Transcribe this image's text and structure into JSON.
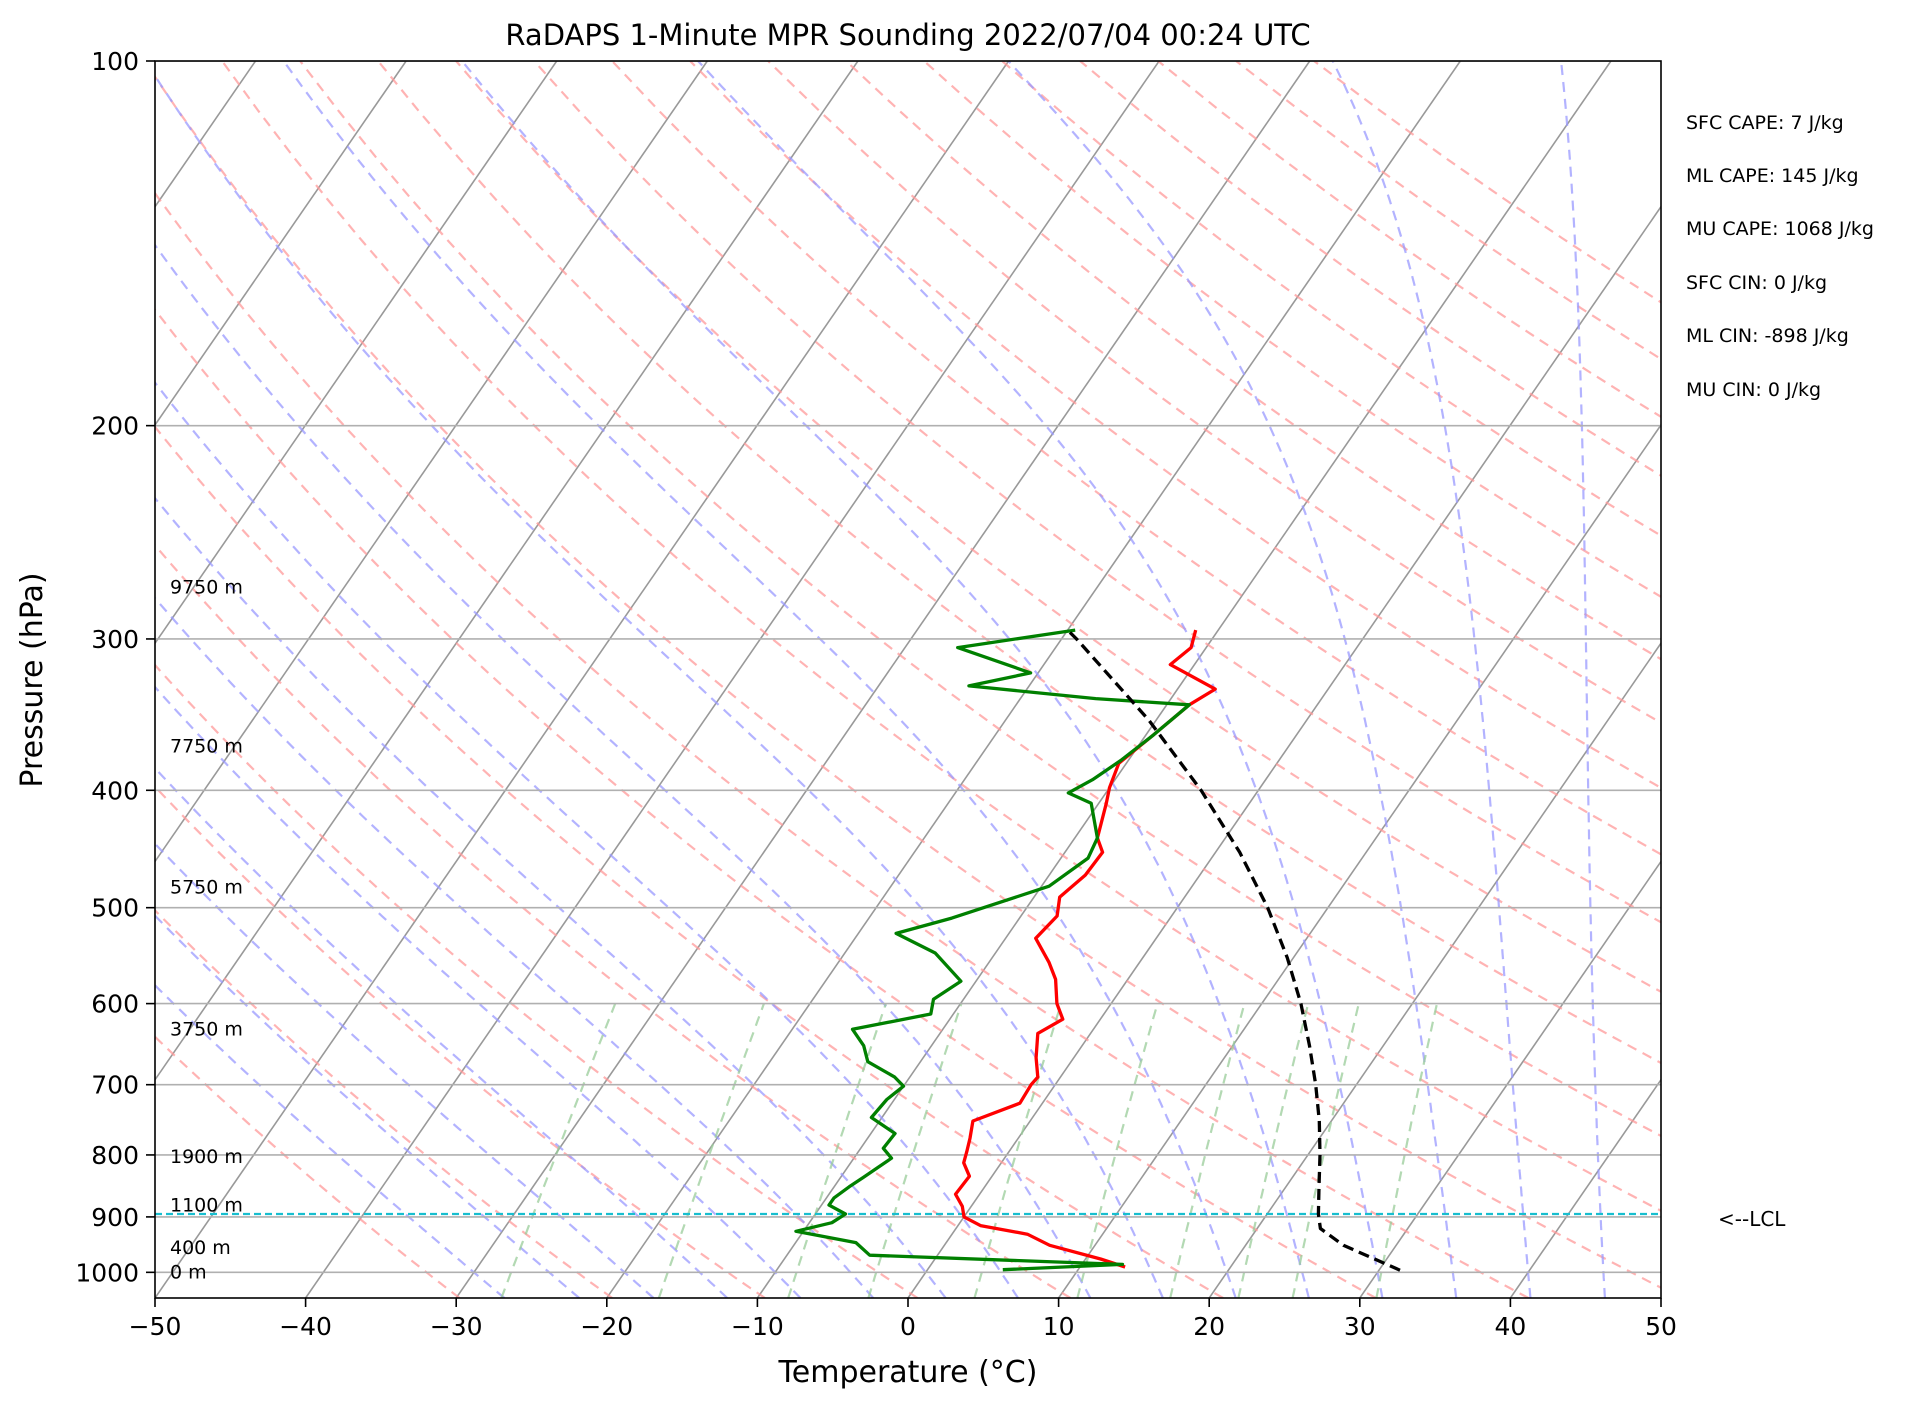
{
  "chart_data": {
    "type": "line",
    "subtype": "skew-t log-p sounding",
    "title": "RaDAPS 1-Minute MPR Sounding 2022/07/04 00:24 UTC",
    "xlabel": "Temperature (°C)",
    "ylabel": "Pressure (hPa)",
    "xlim": [
      -50,
      50
    ],
    "ylim": [
      1050,
      100
    ],
    "y_scale": "log",
    "grid": true,
    "x_ticks": [
      -50,
      -40,
      -30,
      -20,
      -10,
      0,
      10,
      20,
      30,
      40,
      50
    ],
    "x_tick_labels": [
      "−50",
      "−40",
      "−30",
      "−20",
      "−10",
      "0",
      "10",
      "20",
      "30",
      "40",
      "50"
    ],
    "y_ticks": [
      100,
      200,
      300,
      400,
      500,
      600,
      700,
      800,
      900,
      1000
    ],
    "y_tick_labels": [
      "100",
      "200",
      "300",
      "400",
      "500",
      "600",
      "700",
      "800",
      "900",
      "1000"
    ],
    "series": [
      {
        "role": "temperature",
        "color": "#ff0000",
        "points": [
          [
            295,
            -11.5
          ],
          [
            305,
            -11
          ],
          [
            315,
            -11.6
          ],
          [
            330,
            -7.5
          ],
          [
            340,
            -8.5
          ],
          [
            360,
            -9.5
          ],
          [
            380,
            -10.5
          ],
          [
            398,
            -10
          ],
          [
            410,
            -9.5
          ],
          [
            438,
            -8.5
          ],
          [
            450,
            -7.5
          ],
          [
            470,
            -7.6
          ],
          [
            490,
            -8.3
          ],
          [
            508,
            -7.6
          ],
          [
            530,
            -8
          ],
          [
            555,
            -6
          ],
          [
            573,
            -4.8
          ],
          [
            600,
            -3.6
          ],
          [
            618,
            -2.5
          ],
          [
            635,
            -3.5
          ],
          [
            665,
            -2.5
          ],
          [
            690,
            -1.5
          ],
          [
            700,
            -1.6
          ],
          [
            725,
            -1.5
          ],
          [
            750,
            -3.8
          ],
          [
            775,
            -3.2
          ],
          [
            795,
            -2.8
          ],
          [
            812,
            -2.5
          ],
          [
            833,
            -1.5
          ],
          [
            862,
            -1.6
          ],
          [
            882,
            -0.6
          ],
          [
            900,
            0
          ],
          [
            915,
            1.5
          ],
          [
            930,
            5
          ],
          [
            950,
            7
          ],
          [
            975,
            11
          ],
          [
            990,
            13
          ]
        ]
      },
      {
        "role": "dewpoint",
        "color": "#008000",
        "points": [
          [
            295,
            -19.5
          ],
          [
            305,
            -26.5
          ],
          [
            320,
            -20.5
          ],
          [
            328,
            -24
          ],
          [
            336,
            -15
          ],
          [
            340,
            -8.5
          ],
          [
            360,
            -9.5
          ],
          [
            378,
            -10.5
          ],
          [
            392,
            -11.5
          ],
          [
            402,
            -12.5
          ],
          [
            410,
            -10.5
          ],
          [
            438,
            -8.5
          ],
          [
            455,
            -8.2
          ],
          [
            480,
            -9.5
          ],
          [
            510,
            -14.5
          ],
          [
            525,
            -17.5
          ],
          [
            545,
            -14
          ],
          [
            575,
            -11
          ],
          [
            595,
            -12
          ],
          [
            612,
            -11.5
          ],
          [
            630,
            -16
          ],
          [
            650,
            -14.5
          ],
          [
            670,
            -13.5
          ],
          [
            690,
            -11
          ],
          [
            702,
            -10
          ],
          [
            720,
            -10.5
          ],
          [
            745,
            -10.7
          ],
          [
            768,
            -8.4
          ],
          [
            790,
            -8.5
          ],
          [
            805,
            -7.5
          ],
          [
            820,
            -8
          ],
          [
            835,
            -8.5
          ],
          [
            850,
            -9
          ],
          [
            868,
            -9.5
          ],
          [
            880,
            -9.5
          ],
          [
            895,
            -8
          ],
          [
            910,
            -8.5
          ],
          [
            925,
            -10.5
          ],
          [
            945,
            -6
          ],
          [
            968,
            -4.5
          ],
          [
            985,
            12.7
          ],
          [
            995,
            5
          ]
        ]
      },
      {
        "role": "parcel",
        "style": "dashed",
        "color": "#000000",
        "points": [
          [
            996,
            31.4
          ],
          [
            950,
            26.5
          ],
          [
            920,
            24.2
          ],
          [
            895,
            23.4
          ],
          [
            850,
            22.2
          ],
          [
            800,
            20.8
          ],
          [
            750,
            19.2
          ],
          [
            700,
            17.3
          ],
          [
            650,
            15.1
          ],
          [
            600,
            12.6
          ],
          [
            550,
            9.6
          ],
          [
            500,
            6.0
          ],
          [
            450,
            1.6
          ],
          [
            400,
            -3.8
          ],
          [
            350,
            -10.5
          ],
          [
            300,
            -19.0
          ],
          [
            296,
            -19.8
          ]
        ]
      }
    ],
    "height_labels": [
      {
        "text": "0 m",
        "p": 1000
      },
      {
        "text": "400 m",
        "p": 955
      },
      {
        "text": "1100 m",
        "p": 881
      },
      {
        "text": "1900 m",
        "p": 803
      },
      {
        "text": "3750 m",
        "p": 630
      },
      {
        "text": "5750 m",
        "p": 481
      },
      {
        "text": "7750 m",
        "p": 368
      },
      {
        "text": "9750 m",
        "p": 272
      }
    ],
    "lcl": {
      "pressure": 895,
      "label": "<--LCL",
      "color": "#17becf"
    },
    "parameters": [
      "SFC CAPE: 7 J/kg",
      "ML CAPE: 145 J/kg",
      "MU CAPE: 1068 J/kg",
      "SFC CIN: 0 J/kg",
      "ML CIN: -898 J/kg",
      "MU CIN: 0 J/kg"
    ],
    "background_lines": {
      "isotherms": {
        "color": "#999999",
        "skewed": true
      },
      "dry_adiabats": {
        "color": "#ff9999",
        "style": "dashed"
      },
      "moist_adiabats": {
        "color": "#9999ff",
        "style": "dashed"
      },
      "mixing_ratio_lines": {
        "color": "#99cc99",
        "style": "dashed",
        "top_pressure": 600
      }
    }
  }
}
